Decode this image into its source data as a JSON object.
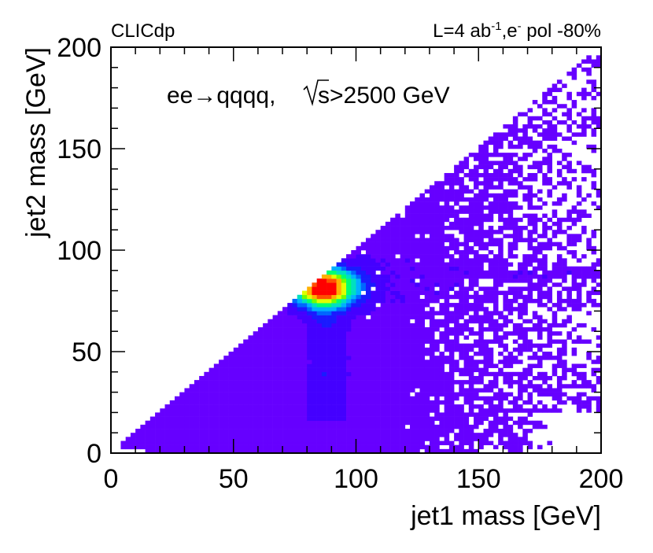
{
  "chart_data": {
    "type": "heatmap",
    "title": "",
    "xlabel": "jet1 mass [GeV]",
    "ylabel": "jet2 mass [GeV]",
    "xlim": [
      0,
      200
    ],
    "ylim": [
      0,
      200
    ],
    "xticks": [
      0,
      50,
      100,
      150,
      200
    ],
    "yticks": [
      0,
      50,
      100,
      150,
      200
    ],
    "x_tick_labels": [
      "0",
      "50",
      "100",
      "150",
      "200"
    ],
    "y_tick_labels": [
      "0",
      "50",
      "100",
      "150",
      "200"
    ],
    "bin_width_gev": 2,
    "experiment_label": "CLICdp",
    "luminosity_label": {
      "prefix": "L=4 ab",
      "exp1": "-1",
      "mid": ",e",
      "exp2": "-",
      "suffix": " pol -80%"
    },
    "process_label": {
      "prefix": "ee",
      "arrow": "→",
      "process": "qqqq, ",
      "sqrt": "√",
      "s": "s",
      "cut": ">2500 GeV"
    },
    "peak": {
      "x": 87,
      "y": 82
    },
    "population_region": "jet2 mass ≤ jet1 mass (triangle below the diagonal), dense near the W/Z mass peak",
    "palette": [
      "#6600ff",
      "#4400ff",
      "#1a1aff",
      "#0066ff",
      "#00b0ff",
      "#00e0c0",
      "#00ff70",
      "#70ff00",
      "#e0ff00",
      "#ffb000",
      "#ff5000",
      "#ff0000"
    ]
  }
}
